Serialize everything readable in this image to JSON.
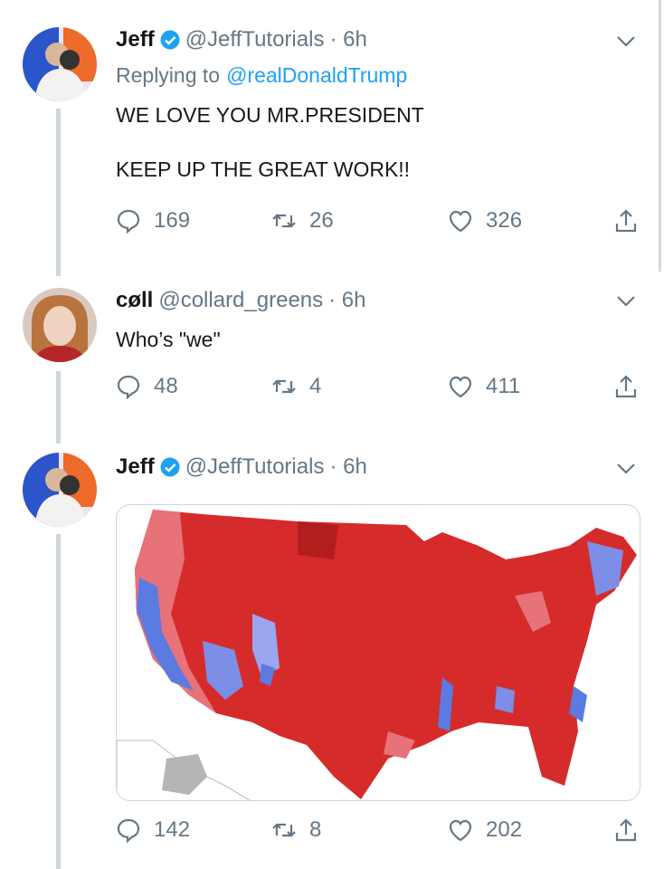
{
  "tweets": [
    {
      "name": "Jeff",
      "verified": true,
      "handle": "@JeffTutorials",
      "time": "· 6h",
      "replying_label": "Replying to",
      "replying_to": "@realDonaldTrump",
      "text": "WE LOVE YOU MR.PRESIDENT\n\nKEEP UP THE GREAT WORK!!",
      "replies": "169",
      "retweets": "26",
      "likes": "326"
    },
    {
      "name": "cøll",
      "verified": false,
      "handle": "@collard_greens",
      "time": "· 6h",
      "text": "Who’s \"we\"",
      "replies": "48",
      "retweets": "4",
      "likes": "411"
    },
    {
      "name": "Jeff",
      "verified": true,
      "handle": "@JeffTutorials",
      "time": "· 6h",
      "media": "US county election map (red/blue)",
      "replies": "142",
      "retweets": "8",
      "likes": "202"
    }
  ],
  "colors": {
    "accent": "#1da1f2",
    "muted": "#657786",
    "red": "#d62b2b",
    "blue": "#5b7be0"
  },
  "icons": [
    "reply-icon",
    "retweet-icon",
    "like-icon",
    "share-icon",
    "chevron-down-icon",
    "verified-badge-icon"
  ]
}
